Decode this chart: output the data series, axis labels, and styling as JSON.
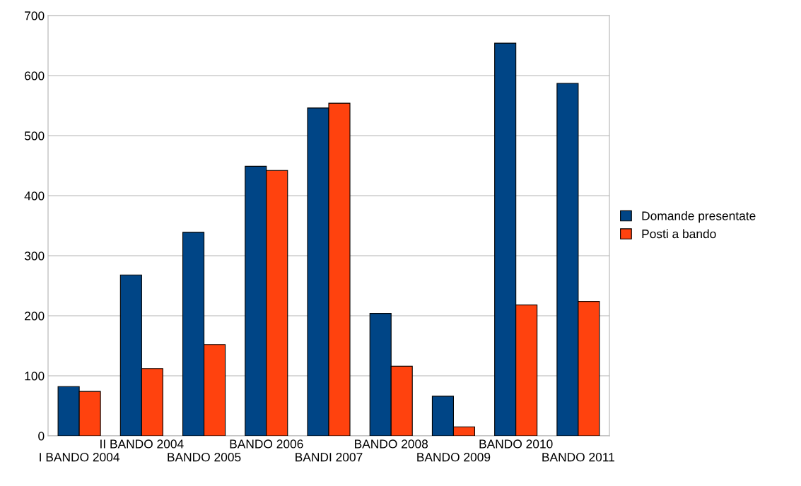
{
  "chart_data": {
    "type": "bar",
    "categories": [
      "I BANDO 2004",
      "II BANDO 2004",
      "BANDO 2005",
      "BANDO 2006",
      "BANDI 2007",
      "BANDO 2008",
      "BANDO 2009",
      "BANDO 2010",
      "BANDO 2011"
    ],
    "series": [
      {
        "name": "Domande presentate",
        "color": "#004586",
        "values": [
          82,
          268,
          339,
          449,
          546,
          204,
          66,
          654,
          587
        ]
      },
      {
        "name": "Posti a bando",
        "color": "#ff420e",
        "values": [
          74,
          112,
          152,
          442,
          554,
          116,
          15,
          218,
          224
        ]
      }
    ],
    "ylim": [
      0,
      700
    ],
    "yticks": [
      0,
      100,
      200,
      300,
      400,
      500,
      600,
      700
    ],
    "grid": "y",
    "legend": "right"
  }
}
